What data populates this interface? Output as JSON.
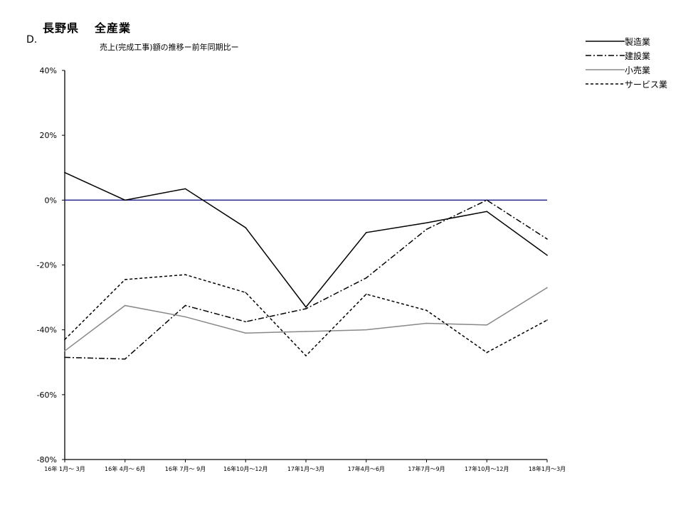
{
  "header": {
    "prefecture": "長野県",
    "industry": "全産業",
    "section": "D.",
    "subtitle": "売上(完成工事)額の推移ー前年同期比ー"
  },
  "chart_data": {
    "type": "line",
    "title": "売上(完成工事)額の推移ー前年同期比ー",
    "xlabel": "",
    "ylabel": "",
    "ylim": [
      -80,
      40
    ],
    "y_ticks": [
      "40%",
      "20%",
      "0%",
      "-20%",
      "-40%",
      "-60%",
      "-80%"
    ],
    "y_tick_values": [
      40,
      20,
      0,
      -20,
      -40,
      -60,
      -80
    ],
    "reference_line": {
      "value": 0,
      "color": "#1a1a8c"
    },
    "categories": [
      "16年 1月～ 3月",
      "16年 4月～ 6月",
      "16年 7月～ 9月",
      "16年10月～12月",
      "17年1月～3月",
      "17年4月～6月",
      "17年7月～9月",
      "17年10月～12月",
      "18年1月～3月"
    ],
    "series": [
      {
        "name": "製造業",
        "color": "#000000",
        "dash": "",
        "values": [
          8.5,
          0,
          3.5,
          -8.5,
          -33,
          -10,
          -7,
          -3.5,
          -17
        ]
      },
      {
        "name": "建設業",
        "color": "#000000",
        "dash": "8,3,2,3",
        "values": [
          -48.5,
          -49,
          -32.5,
          -37.5,
          -33.5,
          -24,
          -9,
          0,
          -12
        ]
      },
      {
        "name": "小売業",
        "color": "#888888",
        "dash": "",
        "values": [
          -46.5,
          -32.5,
          -36,
          -41,
          -40.5,
          -40,
          -38,
          -38.5,
          -27
        ]
      },
      {
        "name": "サービス業",
        "color": "#000000",
        "dash": "4,3",
        "values": [
          -43,
          -24.5,
          -23,
          -28.5,
          -48,
          -29,
          -34,
          -47,
          -37
        ]
      }
    ],
    "legend_position": "top-right",
    "grid": false
  }
}
